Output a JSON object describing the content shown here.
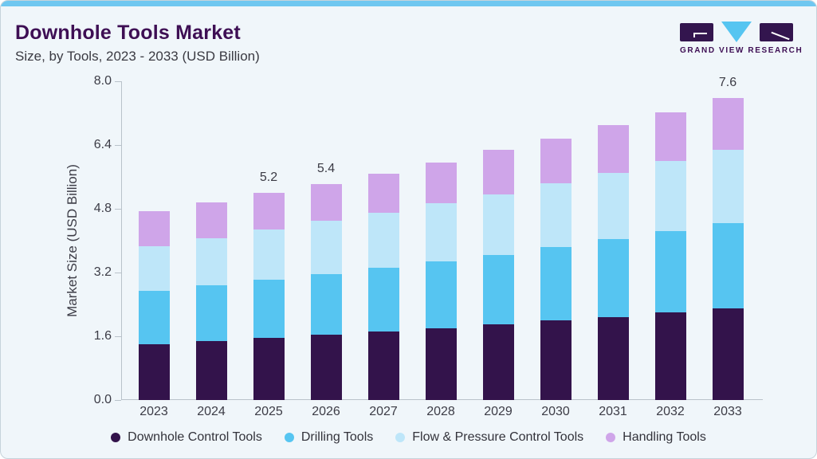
{
  "page": {
    "title": "Downhole Tools Market",
    "subtitle": "Size, by Tools, 2023 - 2033 (USD Billion)",
    "brand": {
      "name": "GRAND VIEW RESEARCH"
    },
    "colors": {
      "accent_bar": "#6FC7F0",
      "card_background": "#F0F6FA",
      "title_purple": "#3E0F54",
      "axis_line": "#B9C2CA",
      "logo_block": "#33154E",
      "logo_triangle": "#56C5F1"
    }
  },
  "chart_data": {
    "type": "bar",
    "stacked": true,
    "title": "Downhole Tools Market",
    "subtitle": "Size, by Tools, 2023 - 2033 (USD Billion)",
    "xlabel": "",
    "ylabel": "Market Size (USD Billion)",
    "ylim": [
      0,
      8.0
    ],
    "ytick_labels": [
      "0.0",
      "1.6",
      "3.2",
      "4.8",
      "6.4",
      "8.0"
    ],
    "grid": false,
    "legend_position": "bottom",
    "categories": [
      "2023",
      "2024",
      "2025",
      "2026",
      "2027",
      "2028",
      "2029",
      "2030",
      "2031",
      "2032",
      "2033"
    ],
    "series": [
      {
        "name": "Downhole Control Tools",
        "color": "#33134B",
        "values": [
          1.41,
          1.48,
          1.56,
          1.64,
          1.72,
          1.8,
          1.9,
          2.0,
          2.09,
          2.2,
          2.31
        ]
      },
      {
        "name": "Drilling Tools",
        "color": "#56C5F1",
        "values": [
          1.34,
          1.4,
          1.46,
          1.53,
          1.61,
          1.69,
          1.75,
          1.85,
          1.95,
          2.05,
          2.14
        ]
      },
      {
        "name": "Flow & Pressure Control Tools",
        "color": "#BEE6F9",
        "values": [
          1.12,
          1.19,
          1.27,
          1.33,
          1.38,
          1.45,
          1.52,
          1.6,
          1.67,
          1.75,
          1.83
        ]
      },
      {
        "name": "Handling Tools",
        "color": "#CFA5E9",
        "values": [
          0.88,
          0.89,
          0.91,
          0.92,
          0.97,
          1.03,
          1.11,
          1.12,
          1.19,
          1.22,
          1.31
        ]
      }
    ],
    "totals": [
      4.75,
      4.96,
      5.2,
      5.42,
      5.68,
      5.97,
      6.28,
      6.57,
      6.9,
      7.22,
      7.59
    ],
    "bar_value_labels": [
      "",
      "",
      "5.2",
      "5.4",
      "",
      "",
      "",
      "",
      "",
      "",
      "7.6"
    ]
  }
}
